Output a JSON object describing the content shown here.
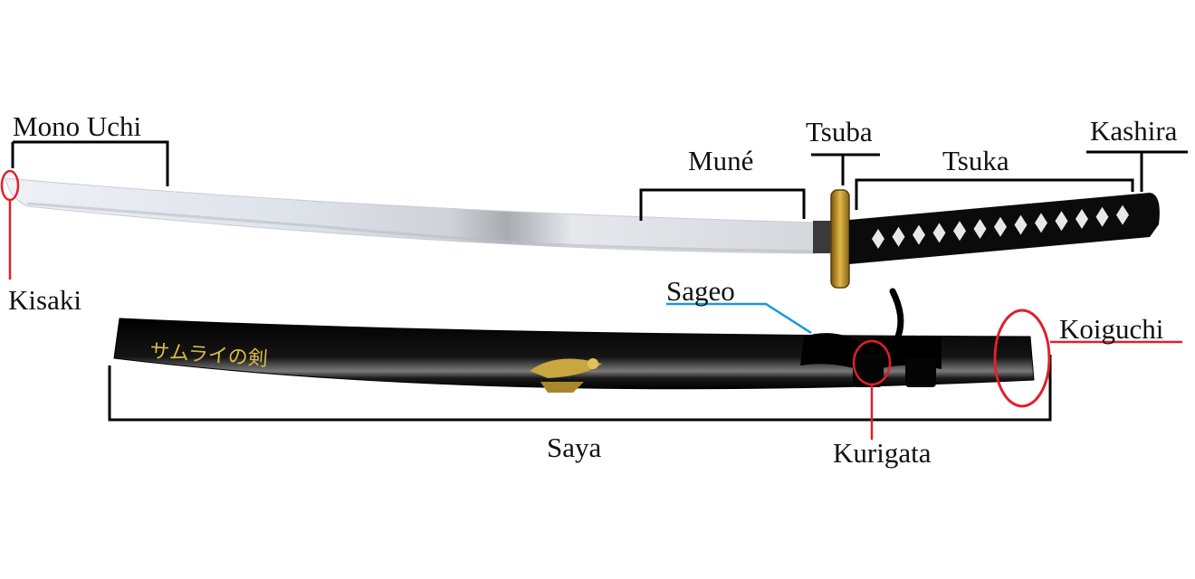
{
  "diagram": {
    "labels": {
      "mono_uchi": "Mono Uchi",
      "kisaki": "Kisaki",
      "mune": "Muné",
      "tsuba": "Tsuba",
      "tsuka": "Tsuka",
      "kashira": "Kashira",
      "sageo": "Sageo",
      "koiguchi": "Koiguchi",
      "saya": "Saya",
      "kurigata": "Kurigata"
    },
    "scabbard_inscription": "サムライの剣"
  },
  "colors": {
    "red_marker": "#e0202a",
    "blue_marker": "#1a9ad8",
    "tsuba_gold": "#c89a2a",
    "lacquer_black": "#0a0a0a",
    "inscription_gold": "#d9b84a"
  }
}
